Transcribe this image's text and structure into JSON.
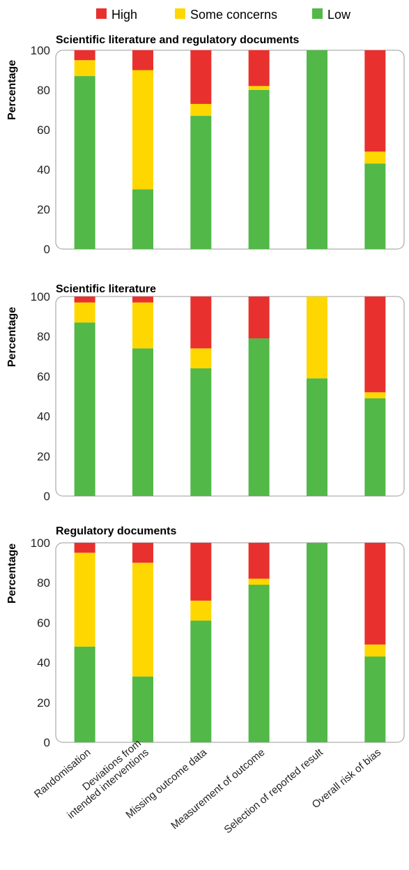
{
  "legend": {
    "items": [
      {
        "label": "High",
        "color": "#e8312f"
      },
      {
        "label": "Some concerns",
        "color": "#ffd700"
      },
      {
        "label": "Low",
        "color": "#52b848"
      }
    ]
  },
  "chart_data": [
    {
      "type": "bar",
      "stacked": true,
      "title": "Scientific literature and regulatory documents",
      "ylabel": "Percentage",
      "ylim": [
        0,
        100
      ],
      "yticks": [
        "0",
        "20",
        "40",
        "60",
        "80",
        "100"
      ],
      "categories": [
        "Randomisation",
        "Deviations from intended interventions",
        "Missing outcome data",
        "Measurement of outcome",
        "Selection of reported result",
        "Overall risk of bias"
      ],
      "series": [
        {
          "name": "Low",
          "color": "#52b848",
          "values": [
            87,
            30,
            67,
            80,
            100,
            43
          ]
        },
        {
          "name": "Some concerns",
          "color": "#ffd700",
          "values": [
            8,
            60,
            6,
            2,
            0,
            6
          ]
        },
        {
          "name": "High",
          "color": "#e8312f",
          "values": [
            5,
            10,
            27,
            18,
            0,
            51
          ]
        }
      ]
    },
    {
      "type": "bar",
      "stacked": true,
      "title": "Scientific literature",
      "ylabel": "Percentage",
      "ylim": [
        0,
        100
      ],
      "yticks": [
        "0",
        "20",
        "40",
        "60",
        "80",
        "100"
      ],
      "categories": [
        "Randomisation",
        "Deviations from intended interventions",
        "Missing outcome data",
        "Measurement of outcome",
        "Selection of reported result",
        "Overall risk of bias"
      ],
      "series": [
        {
          "name": "Low",
          "color": "#52b848",
          "values": [
            87,
            74,
            64,
            79,
            59,
            49
          ]
        },
        {
          "name": "Some concerns",
          "color": "#ffd700",
          "values": [
            10,
            23,
            10,
            0,
            41,
            3
          ]
        },
        {
          "name": "High",
          "color": "#e8312f",
          "values": [
            3,
            3,
            26,
            21,
            0,
            48
          ]
        }
      ]
    },
    {
      "type": "bar",
      "stacked": true,
      "title": "Regulatory documents",
      "ylabel": "Percentage",
      "ylim": [
        0,
        100
      ],
      "yticks": [
        "0",
        "20",
        "40",
        "60",
        "80",
        "100"
      ],
      "categories": [
        "Randomisation",
        "Deviations from intended interventions",
        "Missing outcome data",
        "Measurement of outcome",
        "Selection of reported result",
        "Overall risk of bias"
      ],
      "x_tick_labels": [
        [
          "Randomisation"
        ],
        [
          "Deviations from",
          "intended interventions"
        ],
        [
          "Missing outcome data"
        ],
        [
          "Measurement of outcome"
        ],
        [
          "Selection of reported result"
        ],
        [
          "Overall risk of bias"
        ]
      ],
      "series": [
        {
          "name": "Low",
          "color": "#52b848",
          "values": [
            48,
            33,
            61,
            79,
            100,
            43
          ]
        },
        {
          "name": "Some concerns",
          "color": "#ffd700",
          "values": [
            47,
            57,
            10,
            3,
            0,
            6
          ]
        },
        {
          "name": "High",
          "color": "#e8312f",
          "values": [
            5,
            10,
            29,
            18,
            0,
            51
          ]
        }
      ]
    }
  ]
}
